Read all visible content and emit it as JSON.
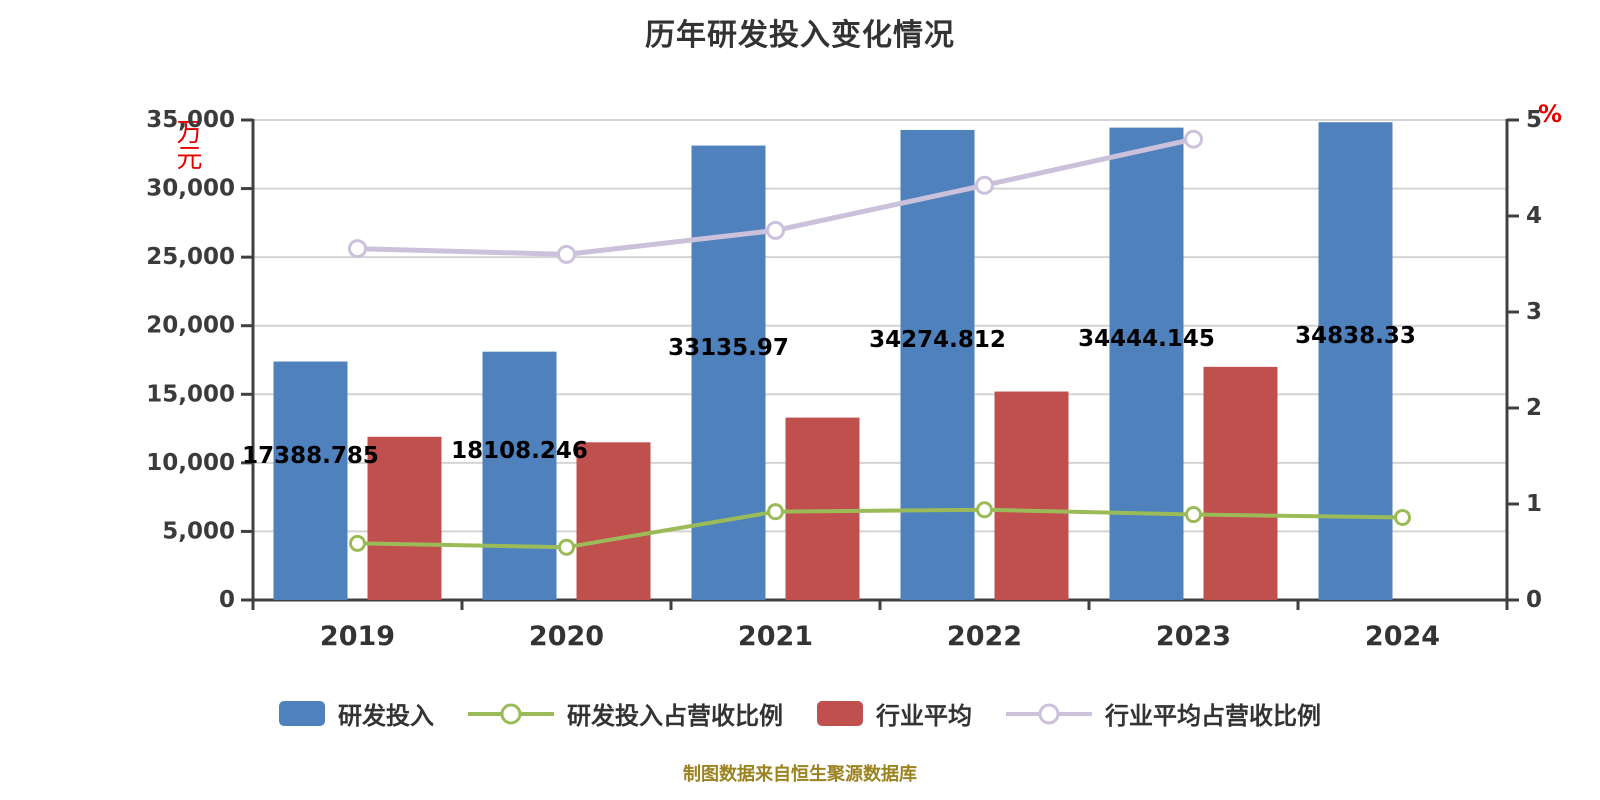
{
  "title": "历年研发投入变化情况",
  "caption": "制图数据来自恒生聚源数据库",
  "left_axis": {
    "unit": "万元",
    "ticks": [
      "35,000",
      "30,000",
      "25,000",
      "20,000",
      "15,000",
      "10,000",
      "5,000",
      "0"
    ],
    "min": 0,
    "max": 35000
  },
  "right_axis": {
    "unit": "%",
    "ticks": [
      "5",
      "4",
      "3",
      "2",
      "1",
      "0"
    ],
    "min": 0,
    "max": 5
  },
  "legend": [
    {
      "label": "研发投入",
      "type": "bar",
      "color": "#4f81bd"
    },
    {
      "label": "研发投入占营收比例",
      "type": "line",
      "color": "#9bbb59"
    },
    {
      "label": "行业平均",
      "type": "bar",
      "color": "#c0504d"
    },
    {
      "label": "行业平均占营收比例",
      "type": "line",
      "color": "#ccc1da"
    }
  ],
  "colors": {
    "bar_rd": "#4f81bd",
    "bar_industry": "#c0504d",
    "line_rd_ratio": "#9bbb59",
    "line_industry_ratio": "#ccc1da",
    "axis": "#404040",
    "grid": "#d4d4d4",
    "tick_label": "#3b3b3b",
    "x_label": "#333333",
    "data_label": "#000000",
    "unit": "#e60000",
    "caption": "#9c8322",
    "title": "#333333"
  },
  "chart_data": {
    "type": "bar",
    "subtype": "bar-line-combo",
    "categories": [
      "2019",
      "2020",
      "2021",
      "2022",
      "2023",
      "2024"
    ],
    "grid": true,
    "legend_position": "bottom",
    "ylim_left": [
      0,
      35000
    ],
    "ylim_right": [
      0,
      5
    ],
    "series": [
      {
        "name": "研发投入",
        "type": "bar",
        "axis": "left",
        "color": "#4f81bd",
        "values": [
          17388.785,
          18108.246,
          33135.97,
          34274.812,
          34444.145,
          34838.33
        ],
        "data_labels": [
          "17388.785",
          "18108.246",
          "33135.97",
          "34274.812",
          "34444.145",
          "34838.33"
        ]
      },
      {
        "name": "行业平均",
        "type": "bar",
        "axis": "left",
        "color": "#c0504d",
        "values": [
          11900,
          11500,
          13300,
          15200,
          17000,
          null
        ]
      },
      {
        "name": "研发投入占营收比例",
        "type": "line",
        "axis": "right",
        "color": "#9bbb59",
        "values": [
          0.59,
          0.55,
          0.92,
          0.94,
          0.89,
          0.86
        ]
      },
      {
        "name": "行业平均占营收比例",
        "type": "line",
        "axis": "right",
        "color": "#ccc1da",
        "values": [
          3.66,
          3.6,
          3.85,
          4.32,
          4.8,
          null
        ]
      }
    ]
  }
}
